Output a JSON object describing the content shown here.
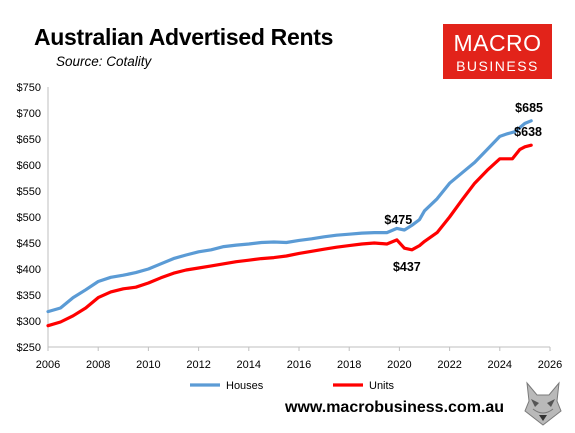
{
  "header": {
    "title": "Australian Advertised Rents",
    "subtitle": "Source: Cotality"
  },
  "logo": {
    "line1": "MACRO",
    "line2": "BUSINESS",
    "color": "#e2231a"
  },
  "footer": {
    "website": "www.macrobusiness.com.au",
    "mascot_icon": "wolf-head-icon"
  },
  "chart_data": {
    "type": "line",
    "title": "Australian Advertised Rents",
    "xlim": [
      2006,
      2026
    ],
    "ylim": [
      250,
      750
    ],
    "xticks": [
      2006,
      2008,
      2010,
      2012,
      2014,
      2016,
      2018,
      2020,
      2022,
      2024,
      2026
    ],
    "yticks": [
      250,
      300,
      350,
      400,
      450,
      500,
      550,
      600,
      650,
      700,
      750
    ],
    "ytick_labels": [
      "$250",
      "$300",
      "$350",
      "$400",
      "$450",
      "$500",
      "$550",
      "$600",
      "$650",
      "$700",
      "$750"
    ],
    "grid": false,
    "legend_position": "bottom",
    "series": [
      {
        "name": "Houses",
        "color": "#5b9bd5",
        "x": [
          2006.0,
          2006.5,
          2007.0,
          2007.5,
          2008.0,
          2008.5,
          2009.0,
          2009.5,
          2010.0,
          2010.5,
          2011.0,
          2011.5,
          2012.0,
          2012.5,
          2013.0,
          2013.5,
          2014.0,
          2014.5,
          2015.0,
          2015.5,
          2016.0,
          2016.5,
          2017.0,
          2017.5,
          2018.0,
          2018.5,
          2019.0,
          2019.5,
          2019.9,
          2020.2,
          2020.5,
          2020.8,
          2021.0,
          2021.5,
          2022.0,
          2022.5,
          2023.0,
          2023.5,
          2024.0,
          2024.3,
          2024.6,
          2025.0,
          2025.25
        ],
        "values": [
          318,
          325,
          345,
          360,
          376,
          384,
          388,
          393,
          400,
          410,
          420,
          427,
          433,
          437,
          443,
          446,
          448,
          451,
          452,
          451,
          455,
          458,
          462,
          465,
          467,
          469,
          470,
          470,
          478,
          475,
          484,
          495,
          512,
          535,
          565,
          585,
          605,
          630,
          655,
          660,
          664,
          680,
          685
        ]
      },
      {
        "name": "Units",
        "color": "#ff0000",
        "x": [
          2006.0,
          2006.5,
          2007.0,
          2007.5,
          2008.0,
          2008.5,
          2009.0,
          2009.5,
          2010.0,
          2010.5,
          2011.0,
          2011.5,
          2012.0,
          2012.5,
          2013.0,
          2013.5,
          2014.0,
          2014.5,
          2015.0,
          2015.5,
          2016.0,
          2016.5,
          2017.0,
          2017.5,
          2018.0,
          2018.5,
          2019.0,
          2019.5,
          2019.9,
          2020.2,
          2020.5,
          2020.8,
          2021.0,
          2021.5,
          2022.0,
          2022.5,
          2023.0,
          2023.5,
          2024.0,
          2024.5,
          2024.8,
          2025.0,
          2025.25
        ],
        "values": [
          291,
          298,
          310,
          325,
          345,
          356,
          362,
          365,
          373,
          383,
          392,
          398,
          402,
          406,
          410,
          414,
          417,
          420,
          422,
          425,
          430,
          434,
          438,
          442,
          445,
          448,
          450,
          448,
          456,
          440,
          437,
          445,
          453,
          470,
          500,
          533,
          565,
          590,
          612,
          612,
          630,
          635,
          638
        ]
      }
    ],
    "annotations": [
      {
        "text": "$685",
        "x": 2025.25,
        "y": 685,
        "series": "Houses"
      },
      {
        "text": "$638",
        "x": 2025.25,
        "y": 638,
        "series": "Units"
      },
      {
        "text": "$475",
        "x": 2020.2,
        "y": 475,
        "series": "Houses"
      },
      {
        "text": "$437",
        "x": 2020.5,
        "y": 437,
        "series": "Units"
      }
    ]
  }
}
